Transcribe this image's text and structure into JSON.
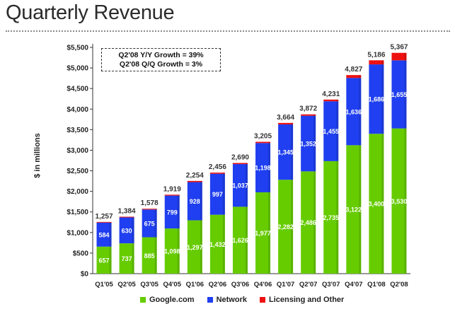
{
  "page": {
    "title": "Quarterly Revenue",
    "growth_line1": "Q2'08 Y/Y Growth = 39%",
    "growth_line2": "Q2'08 Q/Q Growth = 3%"
  },
  "chart_data": {
    "type": "bar",
    "stacked": true,
    "title": "Quarterly Revenue",
    "xlabel": "",
    "ylabel": "$ in millions",
    "ylim": [
      0,
      5500
    ],
    "yticks": [
      0,
      500,
      1000,
      1500,
      2000,
      2500,
      3000,
      3500,
      4000,
      4500,
      5000,
      5500
    ],
    "ytick_labels": [
      "$0",
      "$500",
      "$1,000",
      "$1,500",
      "$2,000",
      "$2,500",
      "$3,000",
      "$3,500",
      "$4,000",
      "$4,500",
      "$5,000",
      "$5,500"
    ],
    "grid": false,
    "legend_position": "bottom",
    "categories": [
      "Q1'05",
      "Q2'05",
      "Q3'05",
      "Q4'05",
      "Q1'06",
      "Q2'06",
      "Q3'06",
      "Q4'06",
      "Q1'07",
      "Q2'07",
      "Q3'07",
      "Q4'07",
      "Q1'08",
      "Q2'08"
    ],
    "series": [
      {
        "name": "Google.com",
        "color": "#66cc00",
        "values": [
          657,
          737,
          885,
          1098,
          1297,
          1432,
          1626,
          1977,
          2282,
          2486,
          2735,
          3122,
          3400,
          3530
        ],
        "labels": [
          "657",
          "737",
          "885",
          "1,098",
          "1,297",
          "1,432",
          "1,626",
          "1,977",
          "2,282",
          "2,486",
          "2,735",
          "3,122",
          "3,400",
          "3,530"
        ]
      },
      {
        "name": "Network",
        "color": "#1f3ff0",
        "values": [
          584,
          630,
          675,
          799,
          928,
          997,
          1037,
          1198,
          1345,
          1352,
          1455,
          1636,
          1686,
          1655
        ],
        "labels": [
          "584",
          "630",
          "675",
          "799",
          "928",
          "997",
          "1,037",
          "1,198",
          "1,345",
          "1,352",
          "1,455",
          "1,636",
          "1,686",
          "1,655"
        ]
      },
      {
        "name": "Licensing and Other",
        "color": "#ee1111",
        "values": [
          16,
          17,
          18,
          22,
          29,
          27,
          27,
          30,
          37,
          34,
          41,
          69,
          100,
          182
        ]
      }
    ],
    "totals": [
      1257,
      1384,
      1578,
      1919,
      2254,
      2456,
      2690,
      3205,
      3664,
      3872,
      4231,
      4827,
      5186,
      5367
    ],
    "total_labels": [
      "1,257",
      "1,384",
      "1,578",
      "1,919",
      "2,254",
      "2,456",
      "2,690",
      "3,205",
      "3,664",
      "3,872",
      "4,231",
      "4,827",
      "5,186",
      "5,367"
    ]
  }
}
